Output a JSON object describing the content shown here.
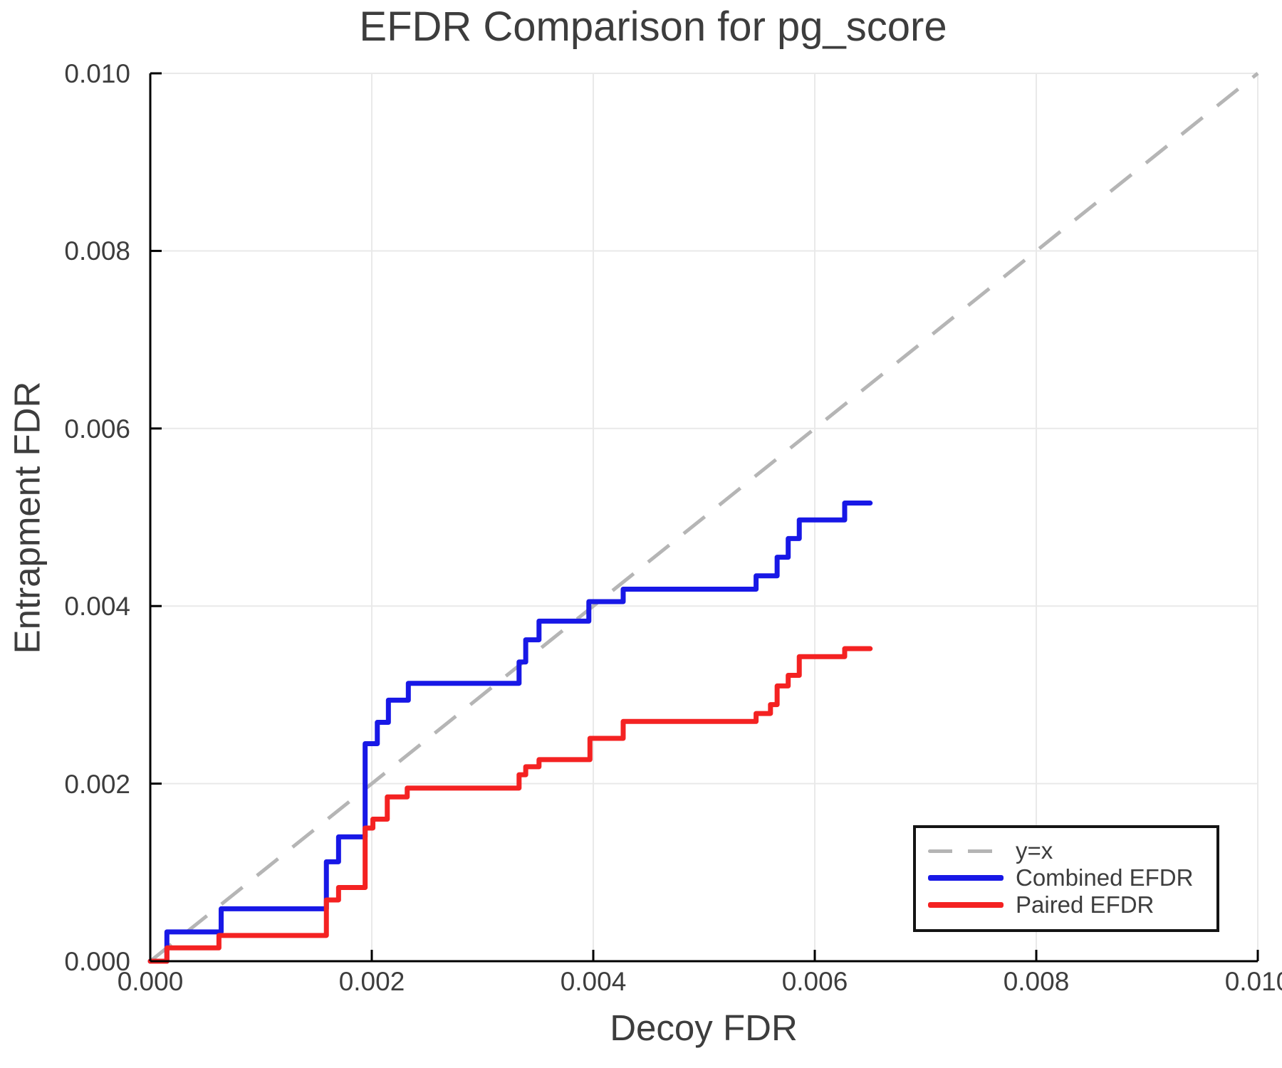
{
  "chart_data": {
    "type": "line",
    "variant": "step-post",
    "title": "EFDR Comparison for pg_score",
    "xlabel": "Decoy FDR",
    "ylabel": "Entrapment FDR",
    "xlim": [
      0.0,
      0.01
    ],
    "ylim": [
      0.0,
      0.01
    ],
    "grid": true,
    "x_ticks": {
      "values": [
        0.0,
        0.002,
        0.004,
        0.006,
        0.008,
        0.01
      ],
      "labels": [
        "0.000",
        "0.002",
        "0.004",
        "0.006",
        "0.008",
        "0.010"
      ]
    },
    "y_ticks": {
      "values": [
        0.0,
        0.002,
        0.004,
        0.006,
        0.008,
        0.01
      ],
      "labels": [
        "0.000",
        "0.002",
        "0.004",
        "0.006",
        "0.008",
        "0.010"
      ]
    },
    "colors": {
      "grid": "#e9e9e9",
      "spine": "#000000",
      "text": "#3d3d3d",
      "reference": "#b5b5b5",
      "combined": "#1818e6",
      "paired": "#f42222"
    },
    "reference_line": {
      "label": "y=x",
      "from": [
        0.0,
        0.0
      ],
      "to": [
        0.01,
        0.01
      ],
      "style": "dashed",
      "color": "#b5b5b5"
    },
    "legend": {
      "position": "bottom-right",
      "entries": [
        {
          "label": "y=x",
          "dash": true,
          "color": "#b5b5b5"
        },
        {
          "label": "Combined EFDR",
          "dash": false,
          "color": "#1818e6"
        },
        {
          "label": "Paired EFDR",
          "dash": false,
          "color": "#f42222"
        }
      ]
    },
    "series": [
      {
        "name": "Combined EFDR",
        "color": "#1818e6",
        "start": [
          0.0,
          0.0
        ],
        "x_end": 0.0065,
        "steps": [
          [
            0.00015,
            0.00033
          ],
          [
            0.00064,
            0.00059
          ],
          [
            0.00159,
            0.00112
          ],
          [
            0.0017,
            0.0014
          ],
          [
            0.00194,
            0.00245
          ],
          [
            0.00205,
            0.00269
          ],
          [
            0.00215,
            0.00294
          ],
          [
            0.00233,
            0.00313
          ],
          [
            0.00333,
            0.00337
          ],
          [
            0.00339,
            0.00362
          ],
          [
            0.00351,
            0.00383
          ],
          [
            0.00396,
            0.00405
          ],
          [
            0.00427,
            0.00419
          ],
          [
            0.00547,
            0.00434
          ],
          [
            0.00566,
            0.00455
          ],
          [
            0.00576,
            0.00476
          ],
          [
            0.00586,
            0.00497
          ],
          [
            0.00627,
            0.00516
          ]
        ]
      },
      {
        "name": "Paired EFDR",
        "color": "#f42222",
        "start": [
          0.0,
          0.0
        ],
        "x_end": 0.0065,
        "steps": [
          [
            0.00015,
            0.00015
          ],
          [
            0.00062,
            0.00029
          ],
          [
            0.00159,
            0.00069
          ],
          [
            0.0017,
            0.00083
          ],
          [
            0.00194,
            0.0015
          ],
          [
            0.00201,
            0.0016
          ],
          [
            0.00214,
            0.00185
          ],
          [
            0.00232,
            0.00195
          ],
          [
            0.00333,
            0.0021
          ],
          [
            0.00339,
            0.00219
          ],
          [
            0.00351,
            0.00227
          ],
          [
            0.00397,
            0.00251
          ],
          [
            0.00427,
            0.0027
          ],
          [
            0.00547,
            0.00279
          ],
          [
            0.0056,
            0.00289
          ],
          [
            0.00566,
            0.0031
          ],
          [
            0.00576,
            0.00322
          ],
          [
            0.00586,
            0.00343
          ],
          [
            0.00627,
            0.00352
          ]
        ]
      }
    ]
  }
}
